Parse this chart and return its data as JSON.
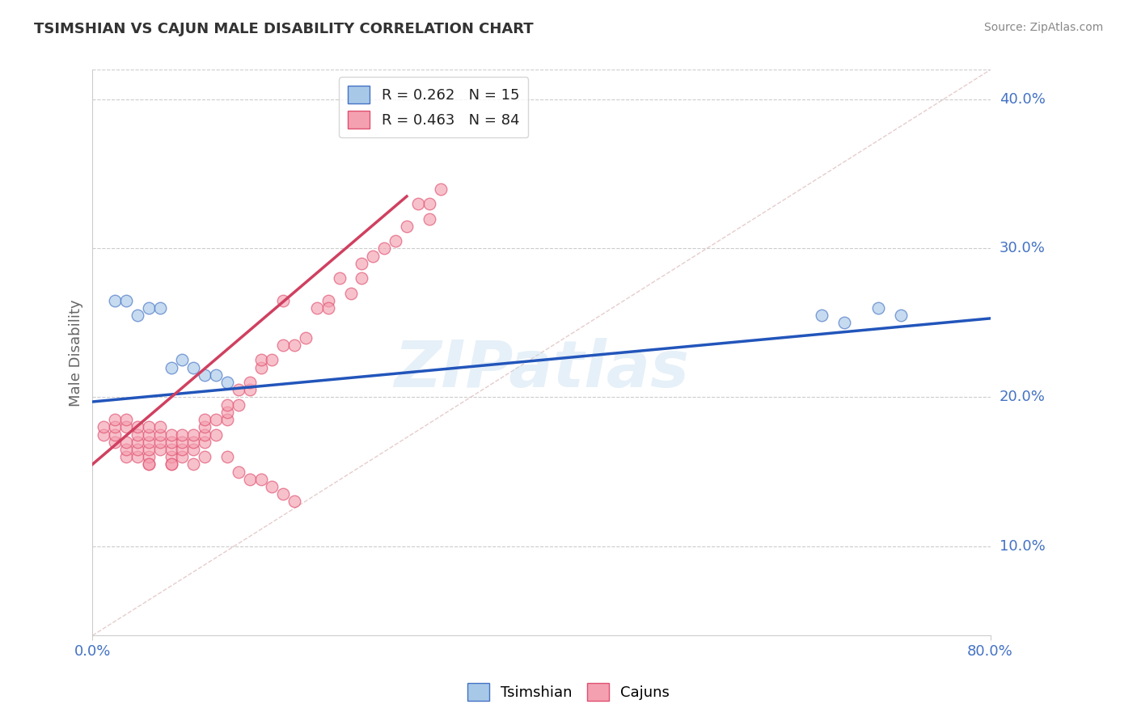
{
  "title": "TSIMSHIAN VS CAJUN MALE DISABILITY CORRELATION CHART",
  "source_text": "Source: ZipAtlas.com",
  "ylabel": "Male Disability",
  "xlim": [
    0.0,
    0.8
  ],
  "ylim": [
    0.04,
    0.42
  ],
  "y_ticks": [
    0.1,
    0.2,
    0.3,
    0.4
  ],
  "y_tick_labels": [
    "10.0%",
    "20.0%",
    "30.0%",
    "40.0%"
  ],
  "tsimshian_fill": "#a8c8e8",
  "tsimshian_edge": "#4472c4",
  "cajun_fill": "#f4a0b0",
  "cajun_edge": "#e05070",
  "tsimshian_line_color": "#2255bb",
  "cajun_line_color": "#d04060",
  "ref_line_color": "#ddbbbb",
  "legend_label1": "R = 0.262   N = 15",
  "legend_label2": "R = 0.463   N = 84",
  "watermark": "ZIPatlas",
  "tsimshian_x": [
    0.02,
    0.03,
    0.04,
    0.05,
    0.06,
    0.07,
    0.08,
    0.09,
    0.1,
    0.11,
    0.12,
    0.65,
    0.67,
    0.7,
    0.72
  ],
  "tsimshian_y": [
    0.265,
    0.265,
    0.255,
    0.26,
    0.26,
    0.22,
    0.225,
    0.22,
    0.215,
    0.215,
    0.21,
    0.255,
    0.25,
    0.26,
    0.255
  ],
  "cajun_x": [
    0.01,
    0.01,
    0.02,
    0.02,
    0.02,
    0.02,
    0.03,
    0.03,
    0.03,
    0.03,
    0.03,
    0.04,
    0.04,
    0.04,
    0.04,
    0.04,
    0.05,
    0.05,
    0.05,
    0.05,
    0.05,
    0.05,
    0.06,
    0.06,
    0.06,
    0.06,
    0.07,
    0.07,
    0.07,
    0.07,
    0.07,
    0.08,
    0.08,
    0.08,
    0.08,
    0.09,
    0.09,
    0.09,
    0.1,
    0.1,
    0.1,
    0.1,
    0.11,
    0.11,
    0.12,
    0.12,
    0.12,
    0.13,
    0.13,
    0.14,
    0.14,
    0.15,
    0.15,
    0.16,
    0.17,
    0.17,
    0.18,
    0.19,
    0.2,
    0.21,
    0.21,
    0.22,
    0.23,
    0.24,
    0.24,
    0.25,
    0.26,
    0.27,
    0.28,
    0.29,
    0.3,
    0.3,
    0.31,
    0.05,
    0.07,
    0.09,
    0.1,
    0.12,
    0.13,
    0.14,
    0.15,
    0.16,
    0.17,
    0.18
  ],
  "cajun_y": [
    0.175,
    0.18,
    0.17,
    0.175,
    0.18,
    0.185,
    0.16,
    0.165,
    0.17,
    0.18,
    0.185,
    0.16,
    0.165,
    0.17,
    0.175,
    0.18,
    0.155,
    0.16,
    0.165,
    0.17,
    0.175,
    0.18,
    0.165,
    0.17,
    0.175,
    0.18,
    0.155,
    0.16,
    0.165,
    0.17,
    0.175,
    0.16,
    0.165,
    0.17,
    0.175,
    0.165,
    0.17,
    0.175,
    0.17,
    0.175,
    0.18,
    0.185,
    0.175,
    0.185,
    0.185,
    0.19,
    0.195,
    0.195,
    0.205,
    0.205,
    0.21,
    0.22,
    0.225,
    0.225,
    0.235,
    0.265,
    0.235,
    0.24,
    0.26,
    0.265,
    0.26,
    0.28,
    0.27,
    0.29,
    0.28,
    0.295,
    0.3,
    0.305,
    0.315,
    0.33,
    0.32,
    0.33,
    0.34,
    0.155,
    0.155,
    0.155,
    0.16,
    0.16,
    0.15,
    0.145,
    0.145,
    0.14,
    0.135,
    0.13
  ],
  "tsimshian_line_x": [
    0.0,
    0.8
  ],
  "tsimshian_line_y": [
    0.197,
    0.253
  ],
  "cajun_line_x": [
    0.0,
    0.28
  ],
  "cajun_line_y": [
    0.155,
    0.335
  ]
}
